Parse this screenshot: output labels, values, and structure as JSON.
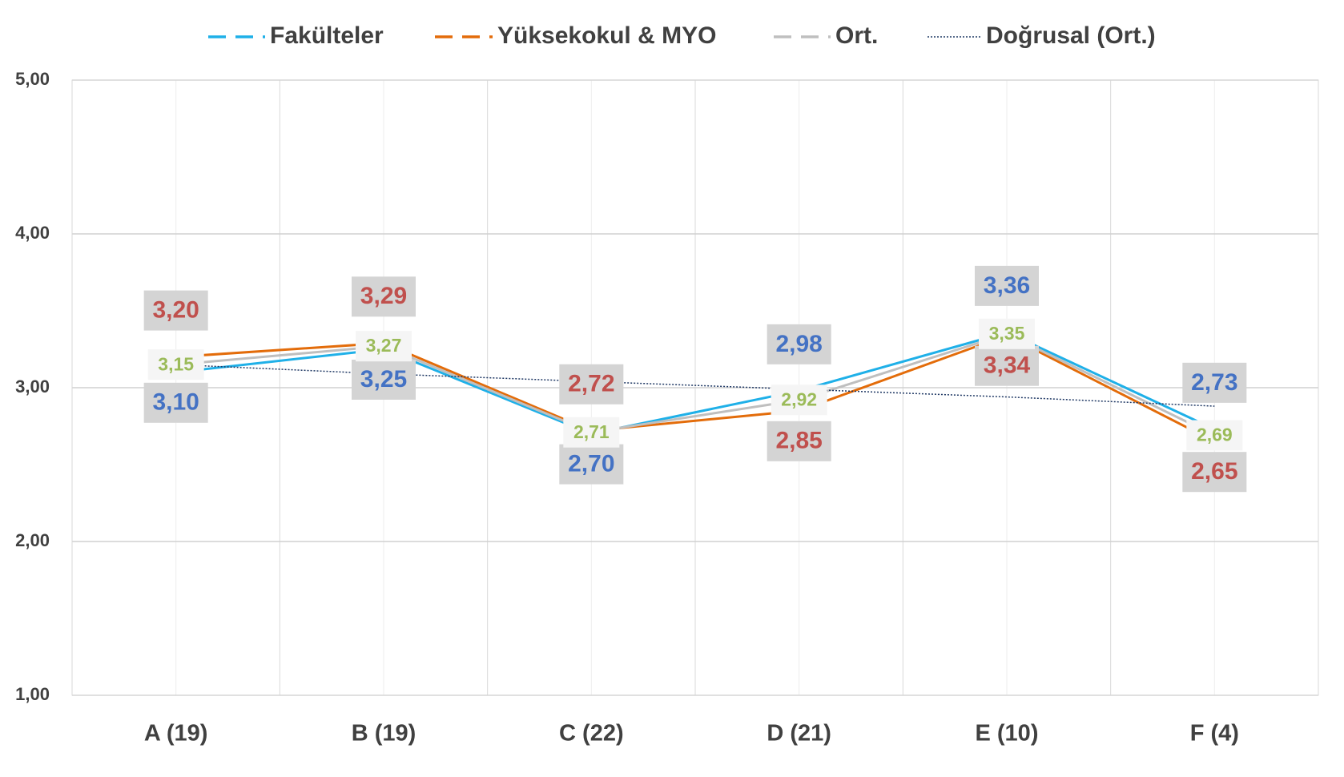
{
  "chart_data": {
    "type": "line",
    "categories": [
      "A (19)",
      "B (19)",
      "C (22)",
      "D (21)",
      "E (10)",
      "F (4)"
    ],
    "series": [
      {
        "name": "Fakülteler",
        "color": "#1fb0e8",
        "label_color": "#4472c4",
        "values": [
          3.1,
          3.25,
          2.7,
          2.98,
          3.36,
          2.73
        ],
        "value_labels": [
          "3,10",
          "3,25",
          "2,70",
          "2,98",
          "3,36",
          "2,73"
        ]
      },
      {
        "name": "Yüksekokul & MYO",
        "color": "#e36c0a",
        "label_color": "#c0504d",
        "values": [
          3.2,
          3.29,
          2.72,
          2.85,
          3.34,
          2.65
        ],
        "value_labels": [
          "3,20",
          "3,29",
          "2,72",
          "2,85",
          "3,34",
          "2,65"
        ]
      },
      {
        "name": "Ort.",
        "color": "#bfbfbf",
        "label_color": "#9bbb59",
        "values": [
          3.15,
          3.27,
          2.71,
          2.92,
          3.35,
          2.69
        ],
        "value_labels": [
          "3,15",
          "3,27",
          "2,71",
          "2,92",
          "3,35",
          "2,69"
        ]
      },
      {
        "name": "Doğrusal (Ort.)",
        "color": "#1f3864",
        "dotted": true,
        "values": [
          3.15,
          3.09,
          3.04,
          2.99,
          2.94,
          2.88
        ]
      }
    ],
    "ylim": [
      1,
      5
    ],
    "yticks": [
      {
        "value": 1,
        "label": "1,00"
      },
      {
        "value": 2,
        "label": "2,00"
      },
      {
        "value": 3,
        "label": "3,00"
      },
      {
        "value": 4,
        "label": "4,00"
      },
      {
        "value": 5,
        "label": "5,00"
      }
    ],
    "grid": true,
    "legend": "top"
  }
}
